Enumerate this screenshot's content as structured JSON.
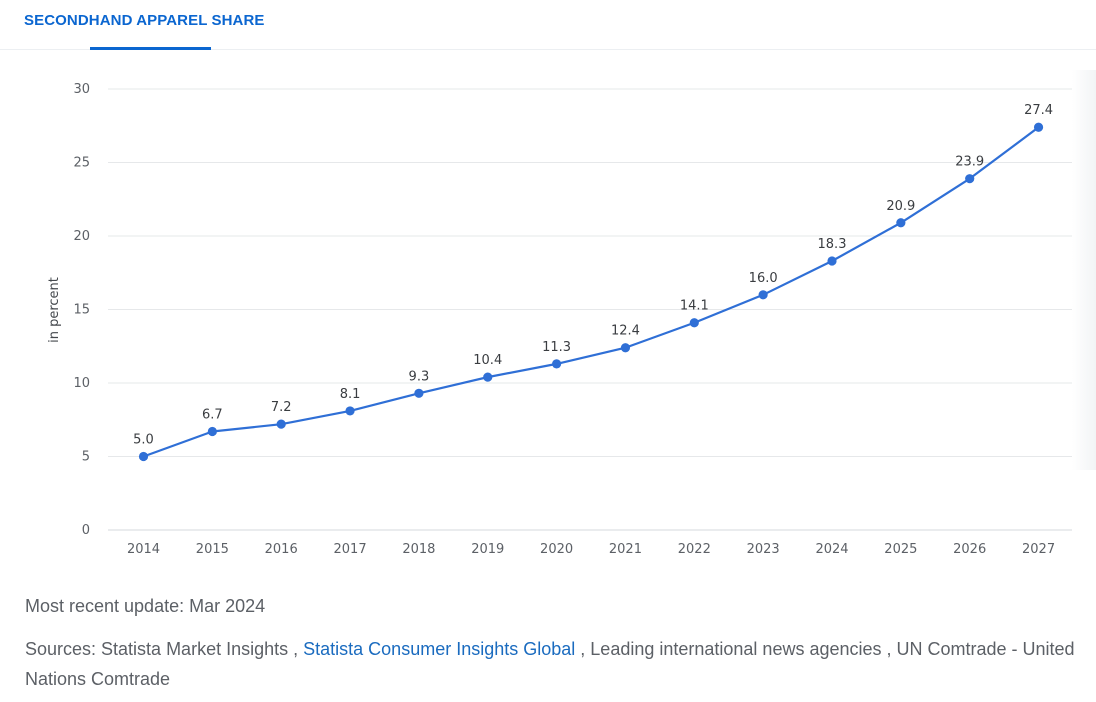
{
  "header": {
    "tab_label": "SECONDHAND APPAREL SHARE"
  },
  "colors": {
    "accent": "#0b66d0",
    "line": "#2f6fd6",
    "grid": "#e6e8ea",
    "text": "#5c6066"
  },
  "chart_data": {
    "type": "line",
    "title": "",
    "xlabel": "",
    "ylabel": "in percent",
    "categories": [
      "2014",
      "2015",
      "2016",
      "2017",
      "2018",
      "2019",
      "2020",
      "2021",
      "2022",
      "2023",
      "2024",
      "2025",
      "2026",
      "2027"
    ],
    "series": [
      {
        "values": [
          5.0,
          6.7,
          7.2,
          8.1,
          9.3,
          10.4,
          11.3,
          12.4,
          14.1,
          16.0,
          18.3,
          20.9,
          23.9,
          27.4
        ],
        "labels": [
          "5.0",
          "6.7",
          "7.2",
          "8.1",
          "9.3",
          "10.4",
          "11.3",
          "12.4",
          "14.1",
          "16.0",
          "18.3",
          "20.9",
          "23.9",
          "27.4"
        ]
      }
    ],
    "ylim": [
      0,
      30
    ],
    "yticks": [
      "0",
      "5",
      "10",
      "15",
      "20",
      "25",
      "30"
    ],
    "grid": true
  },
  "footer": {
    "update_text": "Most recent update: Mar 2024",
    "sources_prefix": "Sources: Statista Market Insights ,",
    "sources_link": "Statista Consumer Insights Global",
    "sources_suffix": ", Leading international news agencies , UN Comtrade - United Nations Comtrade"
  }
}
